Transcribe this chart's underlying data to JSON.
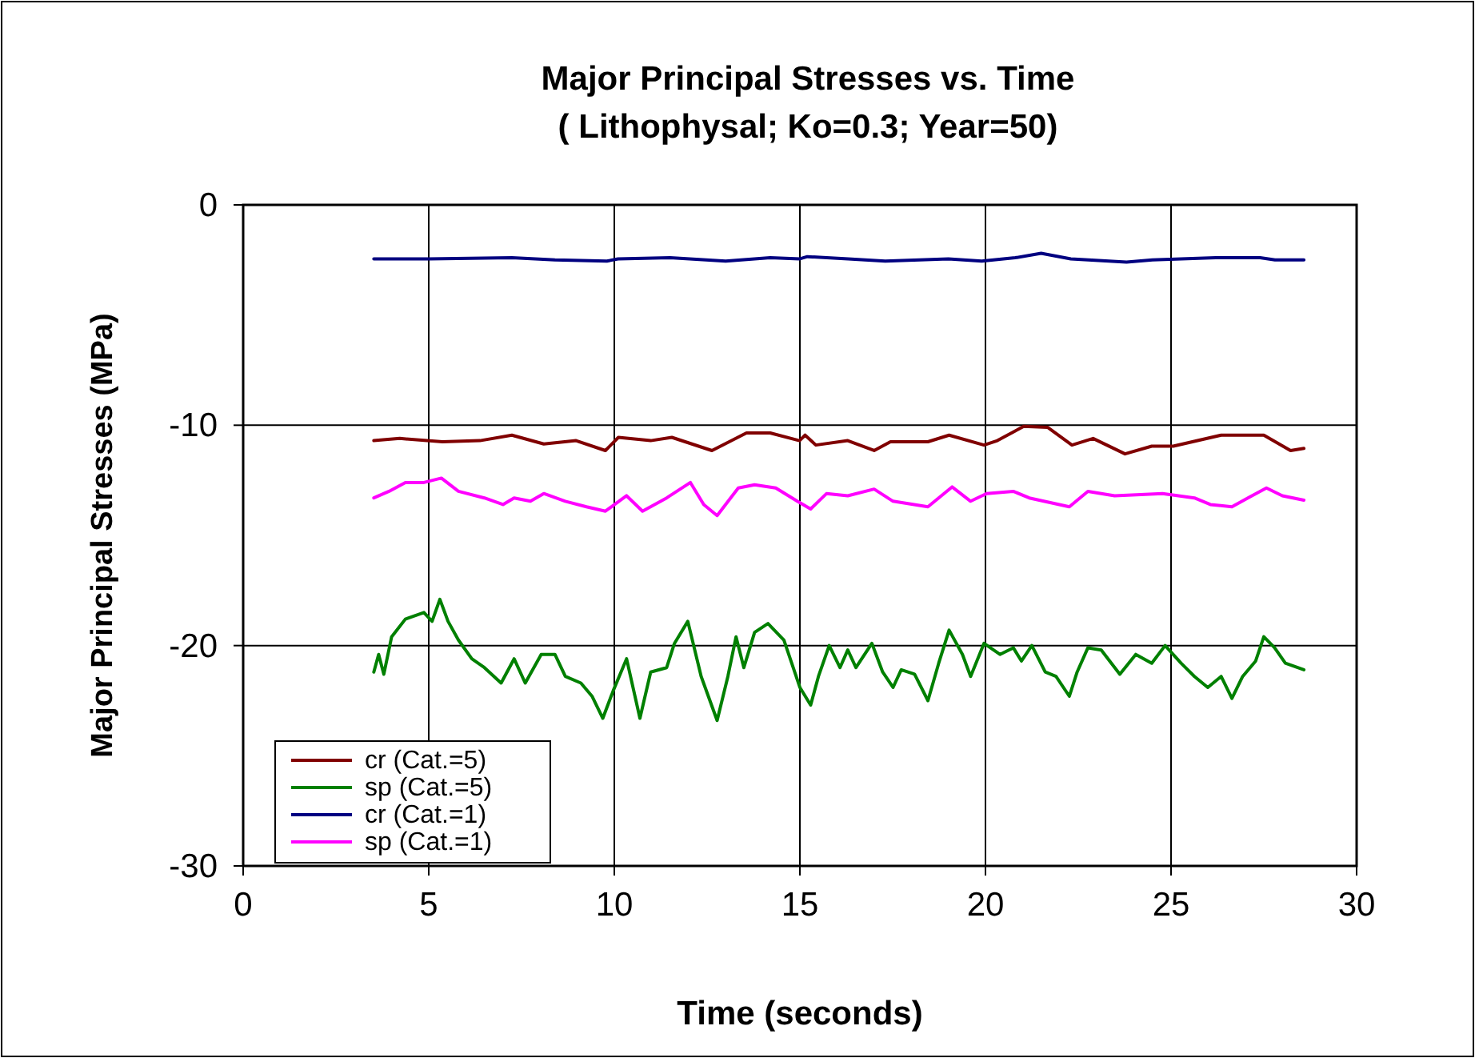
{
  "chart_data": {
    "type": "line",
    "title": "Major Principal Stresses vs. Time",
    "subtitle": "( Lithophysal; Ko=0.3; Year=50)",
    "xlabel": "Time (seconds)",
    "ylabel": "Major Principal Stresses (MPa)",
    "xlim": [
      0,
      30
    ],
    "ylim": [
      -30,
      0
    ],
    "xticks": [
      0,
      5,
      10,
      15,
      20,
      25,
      30
    ],
    "yticks": [
      -30,
      -20,
      -10,
      0
    ],
    "grid": true,
    "legend": "bottom left",
    "line_style": "solid",
    "marker": "none",
    "series": [
      {
        "name": "cr (Cat.=5)",
        "color": "#800000",
        "x": [
          3.52,
          4.22,
          5.37,
          6.38,
          7.24,
          8.1,
          8.97,
          9.76,
          10.11,
          10.98,
          11.55,
          12.63,
          13.56,
          14.2,
          14.99,
          15.14,
          15.43,
          16.29,
          17.0,
          17.44,
          18.45,
          19.02,
          19.96,
          20.32,
          21.03,
          21.68,
          22.33,
          22.9,
          23.76,
          24.48,
          25.06,
          26.35,
          27.5,
          28.22,
          28.58
        ],
        "values": [
          -10.7,
          -10.6,
          -10.75,
          -10.7,
          -10.45,
          -10.85,
          -10.7,
          -11.15,
          -10.55,
          -10.7,
          -10.55,
          -11.15,
          -10.35,
          -10.35,
          -10.7,
          -10.45,
          -10.9,
          -10.7,
          -11.15,
          -10.75,
          -10.75,
          -10.45,
          -10.9,
          -10.7,
          -10.05,
          -10.1,
          -10.9,
          -10.6,
          -11.3,
          -10.95,
          -10.95,
          -10.45,
          -10.45,
          -11.15,
          -11.05
        ]
      },
      {
        "name": "sp (Cat.=5)",
        "color": "#008000",
        "x": [
          3.52,
          3.65,
          3.79,
          4.0,
          4.37,
          4.87,
          5.09,
          5.3,
          5.52,
          5.8,
          6.16,
          6.5,
          6.95,
          7.3,
          7.6,
          8.03,
          8.4,
          8.68,
          9.1,
          9.4,
          9.69,
          9.97,
          10.33,
          10.69,
          10.98,
          11.41,
          11.62,
          11.98,
          12.34,
          12.77,
          13.06,
          13.28,
          13.49,
          13.78,
          14.14,
          14.57,
          15.0,
          15.29,
          15.5,
          15.79,
          16.08,
          16.29,
          16.51,
          16.94,
          17.23,
          17.51,
          17.73,
          18.09,
          18.45,
          18.74,
          19.02,
          19.38,
          19.6,
          19.96,
          20.39,
          20.75,
          20.97,
          21.25,
          21.61,
          21.9,
          22.26,
          22.47,
          22.76,
          23.12,
          23.62,
          24.05,
          24.48,
          24.84,
          25.27,
          25.63,
          25.99,
          26.35,
          26.64,
          26.93,
          27.28,
          27.5,
          27.79,
          28.08,
          28.58
        ],
        "values": [
          -21.2,
          -20.4,
          -21.3,
          -19.6,
          -18.8,
          -18.5,
          -18.9,
          -17.9,
          -18.9,
          -19.75,
          -20.6,
          -21.0,
          -21.7,
          -20.6,
          -21.7,
          -20.4,
          -20.4,
          -21.4,
          -21.7,
          -22.3,
          -23.3,
          -22.05,
          -20.6,
          -23.3,
          -21.2,
          -21.0,
          -19.9,
          -18.9,
          -21.4,
          -23.4,
          -21.4,
          -19.6,
          -21.0,
          -19.4,
          -19.0,
          -19.75,
          -21.9,
          -22.7,
          -21.4,
          -20.0,
          -21.0,
          -20.2,
          -21.0,
          -19.9,
          -21.2,
          -21.9,
          -21.1,
          -21.3,
          -22.5,
          -20.8,
          -19.3,
          -20.4,
          -21.4,
          -19.9,
          -20.4,
          -20.1,
          -20.7,
          -20.0,
          -21.2,
          -21.4,
          -22.3,
          -21.2,
          -20.1,
          -20.2,
          -21.3,
          -20.4,
          -20.8,
          -20.0,
          -20.8,
          -21.4,
          -21.9,
          -21.4,
          -22.4,
          -21.4,
          -20.7,
          -19.6,
          -20.1,
          -20.8,
          -21.1
        ]
      },
      {
        "name": "cr (Cat.=1)",
        "color": "#000080",
        "x": [
          3.52,
          5.0,
          7.24,
          8.4,
          9.8,
          10.1,
          11.5,
          13.0,
          14.2,
          15.0,
          15.2,
          16.3,
          17.3,
          19.0,
          19.9,
          20.8,
          21.5,
          22.3,
          23.8,
          24.5,
          26.2,
          27.4,
          27.8,
          28.58
        ],
        "values": [
          -2.45,
          -2.45,
          -2.4,
          -2.5,
          -2.55,
          -2.45,
          -2.4,
          -2.55,
          -2.4,
          -2.45,
          -2.35,
          -2.45,
          -2.55,
          -2.45,
          -2.55,
          -2.4,
          -2.2,
          -2.45,
          -2.6,
          -2.5,
          -2.4,
          -2.4,
          -2.5,
          -2.5
        ]
      },
      {
        "name": "sp (Cat.=1)",
        "color": "#ff00ff",
        "x": [
          3.52,
          3.93,
          4.37,
          4.87,
          5.34,
          5.8,
          6.5,
          7.0,
          7.3,
          7.74,
          8.1,
          8.68,
          9.25,
          9.76,
          10.33,
          10.76,
          11.41,
          12.05,
          12.41,
          12.77,
          13.34,
          13.78,
          14.35,
          14.93,
          15.29,
          15.72,
          16.29,
          17.0,
          17.51,
          18.45,
          19.1,
          19.6,
          20.03,
          20.75,
          21.18,
          22.26,
          22.76,
          23.48,
          24.77,
          25.63,
          26.06,
          26.64,
          27.07,
          27.57,
          28.0,
          28.58
        ],
        "values": [
          -13.3,
          -13.0,
          -12.6,
          -12.6,
          -12.4,
          -13.0,
          -13.3,
          -13.6,
          -13.3,
          -13.45,
          -13.1,
          -13.45,
          -13.7,
          -13.9,
          -13.2,
          -13.9,
          -13.3,
          -12.6,
          -13.6,
          -14.1,
          -12.85,
          -12.7,
          -12.85,
          -13.45,
          -13.8,
          -13.1,
          -13.2,
          -12.9,
          -13.45,
          -13.7,
          -12.8,
          -13.45,
          -13.1,
          -13.0,
          -13.3,
          -13.7,
          -13.0,
          -13.2,
          -13.1,
          -13.3,
          -13.6,
          -13.7,
          -13.3,
          -12.85,
          -13.2,
          -13.4
        ]
      }
    ]
  }
}
